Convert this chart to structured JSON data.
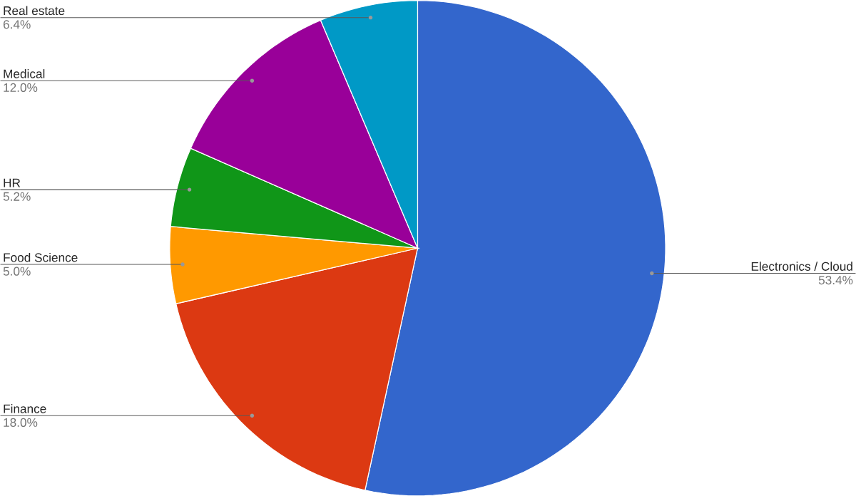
{
  "chart_data": {
    "type": "pie",
    "categories": [
      "Electronics / Cloud",
      "Finance",
      "Food Science",
      "HR",
      "Medical",
      "Real estate"
    ],
    "values": [
      53.4,
      18.0,
      5.0,
      5.2,
      12.0,
      6.4
    ],
    "colors": [
      "#3366cc",
      "#dc3912",
      "#ff9900",
      "#109618",
      "#990099",
      "#0099c6"
    ],
    "value_labels": [
      "53.4%",
      "18.0%",
      "5.0%",
      "5.2%",
      "12.0%",
      "6.4%"
    ],
    "legend": false
  }
}
